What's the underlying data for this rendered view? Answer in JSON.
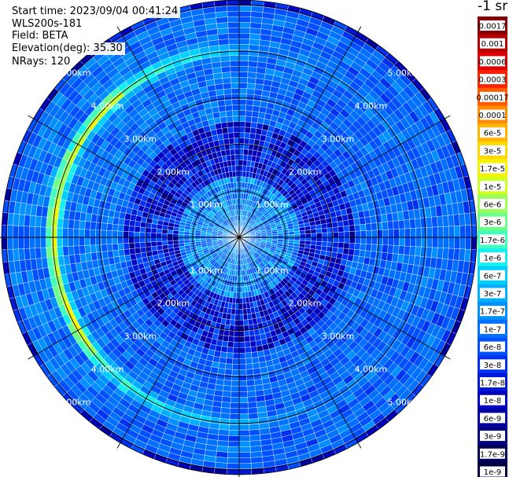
{
  "header": {
    "start_time": "Start time: 2023/09/04 00:41:24",
    "instrument": "WLS200s-181",
    "field": "Field: BETA",
    "elevation": "Elevation(deg): 35.30",
    "nrays": "NRays: 120"
  },
  "colorbar": {
    "unit": "-1 sr",
    "labels": [
      "0.0017",
      "0.001",
      "0.0006",
      "0.0003",
      "0.00017",
      "0.0001",
      "6e-5",
      "3e-5",
      "1.7e-5",
      "1e-5",
      "6e-6",
      "3e-6",
      "1.7e-6",
      "1e-6",
      "6e-7",
      "3e-7",
      "1.7e-7",
      "1e-7",
      "6e-8",
      "3e-8",
      "1.7e-8",
      "1e-8",
      "6e-9",
      "3e-9",
      "1.7e-9",
      "1e-9"
    ],
    "colors": [
      "#8a0000",
      "#b80000",
      "#e00000",
      "#ff2000",
      "#ff5a00",
      "#ff8c00",
      "#ffb400",
      "#ffd800",
      "#f4f400",
      "#ccff24",
      "#9aff5c",
      "#6cff8a",
      "#40ffbc",
      "#14f0ee",
      "#00d0ff",
      "#00b0ff",
      "#0090ff",
      "#0070ff",
      "#0050ff",
      "#0030f0",
      "#0018d8",
      "#0000c0",
      "#0000a0",
      "#000080",
      "#00005c",
      "#000040"
    ]
  },
  "chart_data": {
    "type": "heatmap",
    "projection": "polar (PPI scan)",
    "field": "BETA",
    "elevation_deg": 35.3,
    "n_rays": 120,
    "range_ring_labels": [
      "1.00km",
      "2.00km",
      "3.00km",
      "4.00km",
      "5.00km"
    ],
    "range_rings_km": [
      1,
      2,
      3,
      4,
      5
    ],
    "max_range_km": 5.1,
    "azimuth_gridlines_deg": [
      0,
      30,
      60,
      90,
      120,
      150,
      180,
      210,
      240,
      270,
      300,
      330
    ],
    "range_gates": 43,
    "value_scale": "log",
    "value_range": [
      1e-09,
      0.0017
    ],
    "background_level": 1.7e-08,
    "near_field_level": 1.7e-07,
    "ring_feature": {
      "range_km": 4.0,
      "peak_beta": 1.7e-05,
      "strongest_sector_deg": [
        230,
        320
      ]
    },
    "inner_cloud_region": {
      "range_km": [
        2.5,
        5.0
      ],
      "beta": 1e-07
    }
  }
}
